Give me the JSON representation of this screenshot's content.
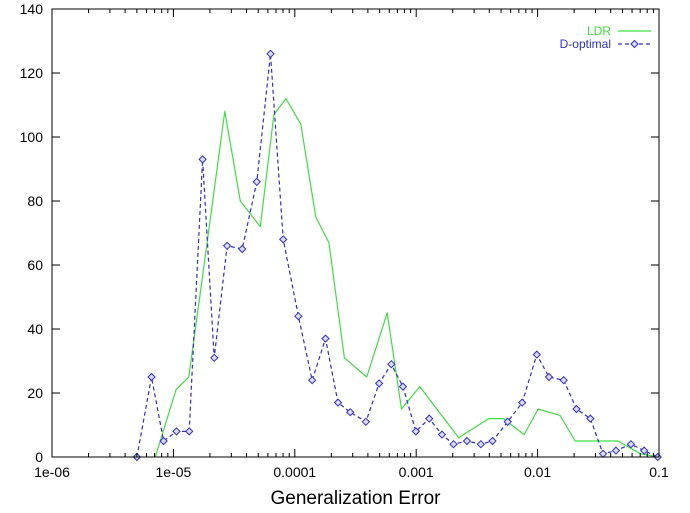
{
  "chart_data": {
    "type": "line",
    "title": "",
    "xlabel": "Generalization Error",
    "ylabel": "",
    "x_scale": "log",
    "xlim": [
      1e-06,
      0.1
    ],
    "ylim": [
      0,
      140
    ],
    "x_ticks": [
      1e-06,
      1e-05,
      0.0001,
      0.001,
      0.01,
      0.1
    ],
    "x_tick_labels": [
      "1e-06",
      "1e-05",
      "0.0001",
      "0.001",
      "0.01",
      "0.1"
    ],
    "y_ticks": [
      0,
      20,
      40,
      60,
      80,
      100,
      120,
      140
    ],
    "y_tick_labels": [
      "0",
      "20",
      "40",
      "60",
      "80",
      "100",
      "120",
      "140"
    ],
    "grid": false,
    "legend_position": "top-right",
    "series": [
      {
        "name": "LDR",
        "color": "#3ee03e",
        "style": "solid",
        "marker": "none",
        "x": [
          7.1e-06,
          1.05e-05,
          1.34e-05,
          1.79e-05,
          2.65e-05,
          3.56e-05,
          5.2e-05,
          6.73e-05,
          8.44e-05,
          0.000112,
          0.000149,
          0.000191,
          0.000256,
          0.000391,
          0.000577,
          0.000756,
          0.00107,
          0.00224,
          0.00396,
          0.00522,
          0.00775,
          0.0101,
          0.0153,
          0.0204,
          0.0459,
          0.0703,
          0.1
        ],
        "y": [
          0,
          21,
          25,
          60,
          108,
          80,
          72,
          107,
          112,
          104,
          75,
          67,
          31,
          25,
          45,
          15,
          22,
          6,
          12,
          12,
          7,
          15,
          13,
          5,
          5,
          1,
          0
        ]
      },
      {
        "name": "D-optimal",
        "color": "#2e2ed0",
        "style": "dashed",
        "marker": "diamond",
        "x": [
          5e-06,
          6.6e-06,
          8.3e-06,
          1.06e-05,
          1.35e-05,
          1.74e-05,
          2.17e-05,
          2.77e-05,
          3.69e-05,
          4.86e-05,
          6.31e-05,
          8.03e-05,
          0.000107,
          0.000139,
          0.000179,
          0.000227,
          0.000286,
          0.000385,
          0.000495,
          0.000624,
          0.000777,
          0.000994,
          0.00128,
          0.00163,
          0.00203,
          0.00262,
          0.00341,
          0.00425,
          0.00567,
          0.00746,
          0.00985,
          0.0124,
          0.0164,
          0.0209,
          0.0272,
          0.0346,
          0.0442,
          0.0587,
          0.0755,
          0.0977
        ],
        "y": [
          0,
          25,
          5,
          8,
          8,
          93,
          31,
          66,
          65,
          86,
          126,
          68,
          44,
          24,
          37,
          17,
          14,
          11,
          23,
          29,
          22,
          8,
          12,
          7,
          4,
          5,
          4,
          5,
          11,
          17,
          32,
          25,
          24,
          15,
          12,
          1,
          2,
          4,
          2,
          0
        ]
      }
    ]
  }
}
